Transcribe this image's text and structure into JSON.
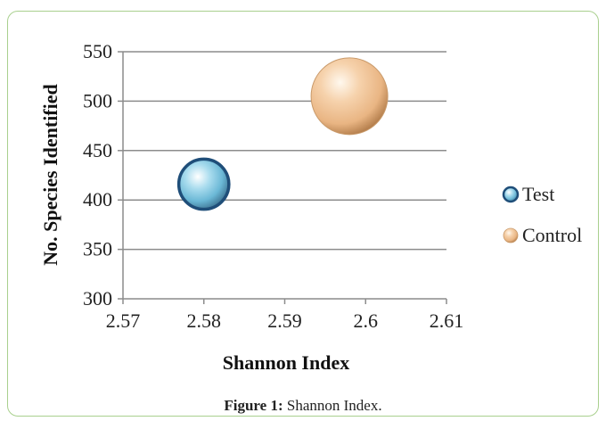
{
  "chart_data": {
    "type": "scatter",
    "xlabel": "Shannon Index",
    "ylabel": "No. Species Identified",
    "xlim": [
      2.57,
      2.61
    ],
    "ylim": [
      300,
      550
    ],
    "x_ticks": [
      "2.57",
      "2.58",
      "2.59",
      "2.6",
      "2.61"
    ],
    "y_ticks": [
      "300",
      "350",
      "400",
      "450",
      "500",
      "550"
    ],
    "grid": "horizontal",
    "legend_position": "right",
    "series": [
      {
        "name": "Test",
        "x": 2.58,
        "y": 416,
        "color": "#8fd0e6"
      },
      {
        "name": "Control",
        "x": 2.598,
        "y": 505,
        "color": "#f2c89e"
      }
    ]
  },
  "caption": {
    "label": "Figure 1:",
    "text": " Shannon Index."
  },
  "colors": {
    "frame_border": "#a9d08e",
    "gridline": "#8c8c8c"
  }
}
